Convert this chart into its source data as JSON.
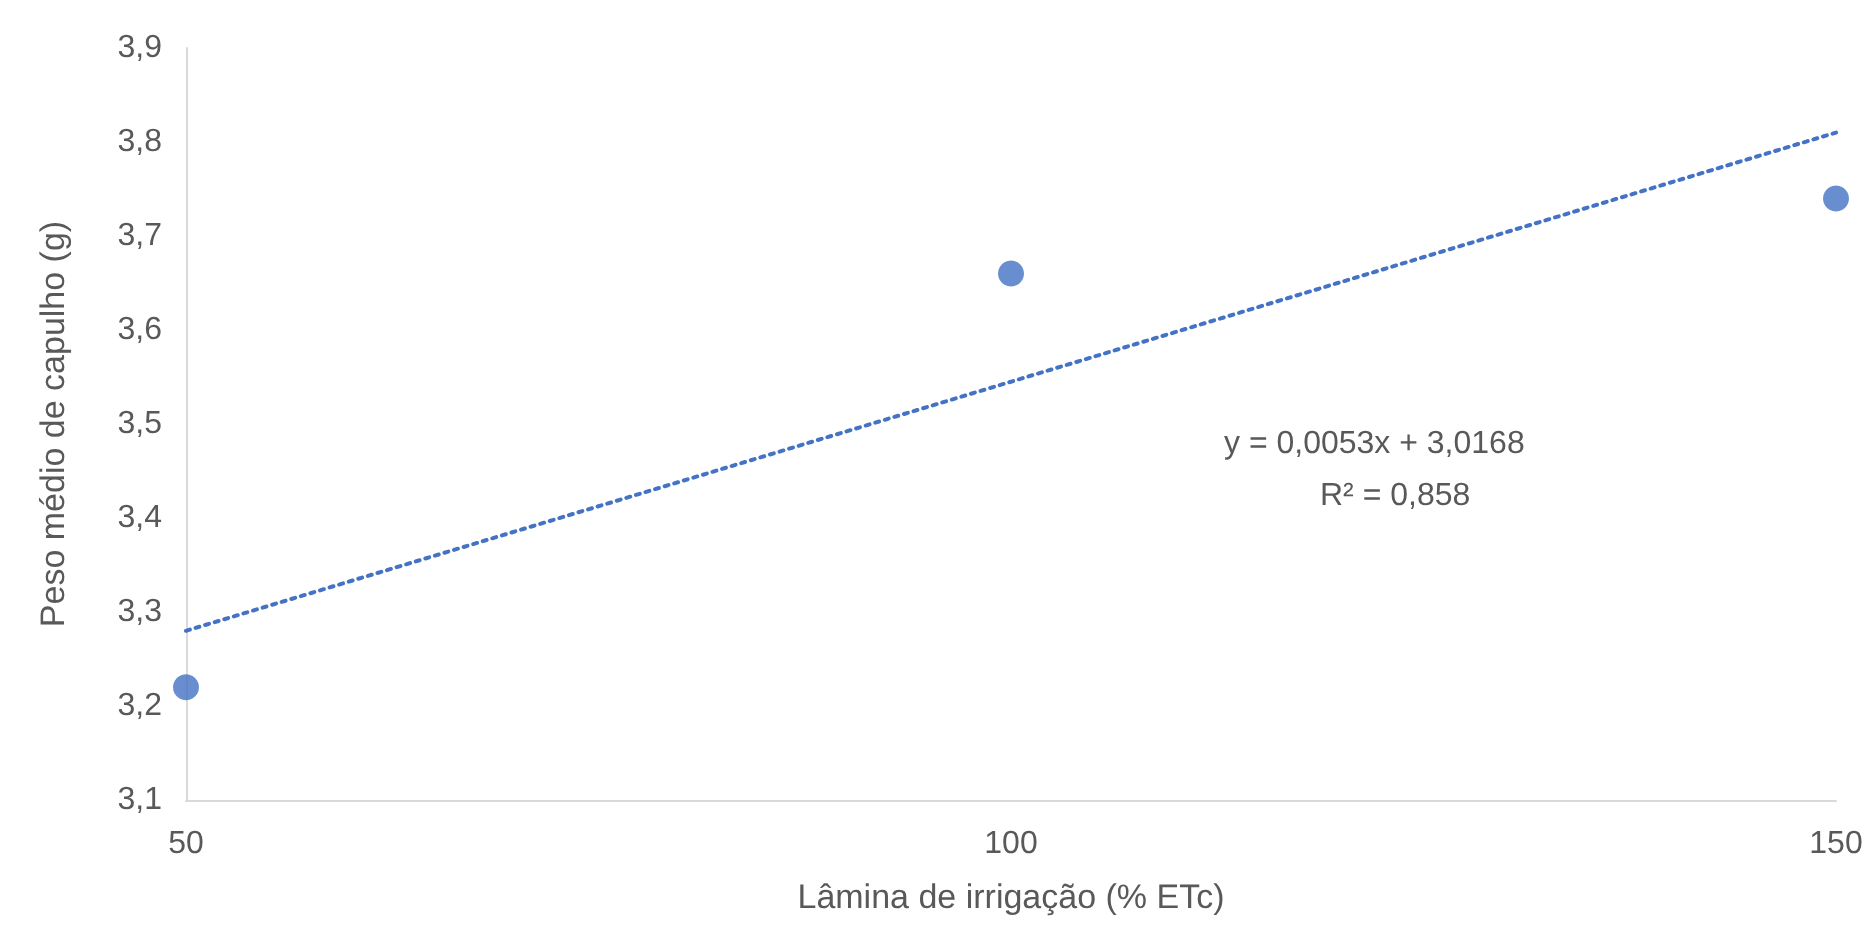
{
  "chart_data": {
    "type": "scatter",
    "xlabel": "Lâmina de irrigação (% ETc)",
    "ylabel": "Peso médio de capulho (g)",
    "x": [
      50,
      100,
      150
    ],
    "series": [
      {
        "color": "#4472c4",
        "values": [
          3.22,
          3.66,
          3.74
        ],
        "marker": "circle"
      },
      {
        "type": "line",
        "color": "#4472c4",
        "x": [
          50,
          150
        ],
        "values": [
          3.28,
          3.81
        ],
        "line_style": "dotted",
        "marker": "none"
      }
    ],
    "xlim": [
      50,
      150
    ],
    "xticks": [
      50,
      100,
      150
    ],
    "ylim": [
      3.1,
      3.9
    ],
    "yticks": [
      {
        "value": 3.1,
        "label": "3,1"
      },
      {
        "value": 3.2,
        "label": "3,2"
      },
      {
        "value": 3.3,
        "label": "3,3"
      },
      {
        "value": 3.4,
        "label": "3,4"
      },
      {
        "value": 3.5,
        "label": "3,5"
      },
      {
        "value": 3.6,
        "label": "3,6"
      },
      {
        "value": 3.7,
        "label": "3,7"
      },
      {
        "value": 3.8,
        "label": "3,8"
      },
      {
        "value": 3.9,
        "label": "3,9"
      }
    ],
    "grid": false,
    "annotations": [
      "y = 0,0053x + 3,0168",
      "R² = 0,858"
    ]
  }
}
